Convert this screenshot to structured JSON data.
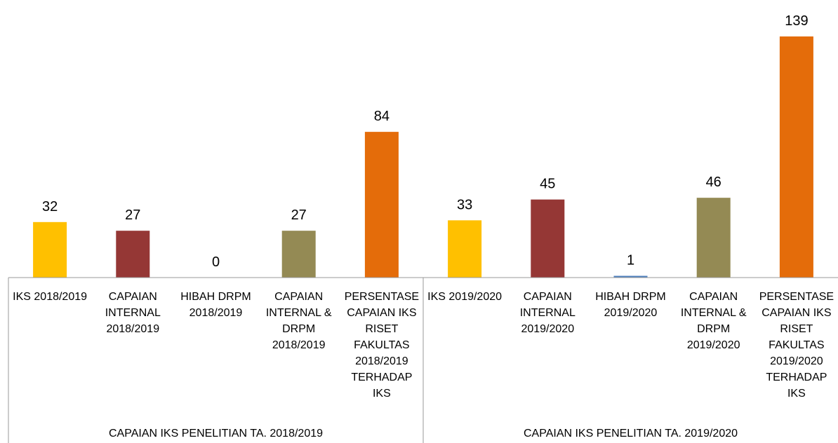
{
  "chart_data": {
    "type": "bar",
    "categories": [
      "IKS 2018/2019",
      "CAPAIAN INTERNAL 2018/2019",
      "HIBAH DRPM 2018/2019",
      "CAPAIAN INTERNAL & DRPM 2018/2019",
      "PERSENTASE CAPAIAN IKS RISET FAKULTAS 2018/2019 TERHADAP IKS",
      "IKS 2019/2020",
      "CAPAIAN INTERNAL 2019/2020",
      "HIBAH DRPM 2019/2020",
      "CAPAIAN INTERNAL & DRPM 2019/2020",
      "PERSENTASE CAPAIAN IKS RISET FAKULTAS 2019/2020 TERHADAP IKS"
    ],
    "values": [
      32,
      27,
      0,
      27,
      84,
      33,
      45,
      1,
      46,
      139
    ],
    "colors": [
      "#FFC000",
      "#953735",
      "#4F81BD",
      "#948A54",
      "#E46C0A",
      "#FFC000",
      "#953735",
      "#4F81BD",
      "#948A54",
      "#E46C0A"
    ],
    "groups": [
      {
        "label": "CAPAIAN IKS PENELITIAN TA. 2018/2019",
        "size": 5
      },
      {
        "label": "CAPAIAN IKS PENELITIAN TA. 2019/2020",
        "size": 5
      }
    ]
  }
}
